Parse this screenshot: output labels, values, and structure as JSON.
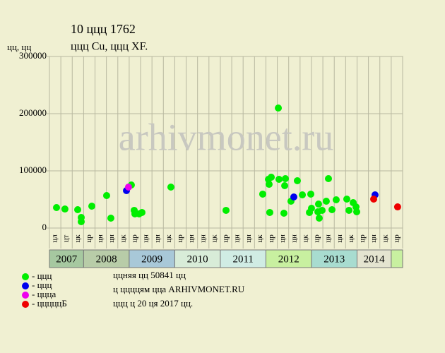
{
  "chart_data": {
    "type": "scatter",
    "title": "10 ццц 1762",
    "subtitle": "ццц Cu, ццц XF.",
    "y_label": "цц, цц",
    "watermark": "arhivmonet.ru",
    "xlim": [
      0,
      31
    ],
    "ylim": [
      0,
      300000
    ],
    "yticks": [
      0,
      100000,
      200000,
      300000
    ],
    "grid": true,
    "columns": [
      "цл",
      "цт",
      "цк",
      "цр",
      "цн",
      "цн",
      "цк",
      "цр",
      "цн",
      "цн",
      "цк",
      "цр",
      "цн",
      "цн",
      "цк",
      "цр",
      "цн",
      "цн",
      "цк",
      "цр",
      "цн",
      "цн",
      "цк",
      "цр",
      "цн",
      "цн",
      "цк",
      "цр",
      "цн",
      "цк",
      "цр"
    ],
    "years": [
      {
        "label": "2007",
        "from": 0,
        "to": 3,
        "color": "#a6c8a0"
      },
      {
        "label": "2008",
        "from": 3,
        "to": 7,
        "color": "#b8cca8"
      },
      {
        "label": "2009",
        "from": 7,
        "to": 11,
        "color": "#a8c8d8"
      },
      {
        "label": "2010",
        "from": 11,
        "to": 15,
        "color": "#d8ecd8"
      },
      {
        "label": "2011",
        "from": 15,
        "to": 19,
        "color": "#d0ece4"
      },
      {
        "label": "2012",
        "from": 19,
        "to": 23,
        "color": "#c8f0a0"
      },
      {
        "label": "2013",
        "from": 23,
        "to": 27,
        "color": "#a8dcd0"
      },
      {
        "label": "2014",
        "from": 27,
        "to": 30,
        "color": "#e4e4d0"
      },
      {
        "label": "",
        "from": 30,
        "to": 31,
        "color": "#c8f0a0"
      }
    ],
    "series": [
      {
        "name": "- ццц",
        "color": "#00ee00",
        "x": [
          0.62,
          1.36,
          2.48,
          2.79,
          2.79,
          3.72,
          5.02,
          5.39,
          7.19,
          7.44,
          7.5,
          7.87,
          8.12,
          10.66,
          15.5,
          18.72,
          19.22,
          19.28,
          19.34,
          19.47,
          20.09,
          20.15,
          20.58,
          20.65,
          20.71,
          21.2,
          21.76,
          22.2,
          22.82,
          22.94,
          23.0,
          23.56,
          23.62,
          23.68,
          23.93,
          24.3,
          24.49,
          24.8,
          25.17,
          26.1,
          26.29,
          26.66,
          26.91,
          26.97
        ],
        "values": [
          35800,
          33300,
          32100,
          18500,
          11100,
          38300,
          56800,
          17300,
          75300,
          30900,
          24700,
          24700,
          27200,
          71600,
          30900,
          59300,
          85200,
          76500,
          27200,
          88900,
          209900,
          85200,
          25900,
          74100,
          86400,
          46900,
          82700,
          58000,
          27200,
          59300,
          34600,
          28400,
          42000,
          17300,
          30900,
          46900,
          86400,
          32100,
          49400,
          50600,
          30900,
          44400,
          37000,
          28400
        ]
      },
      {
        "name": "- ццц",
        "color": "#0000ee",
        "x": [
          6.76,
          21.45,
          28.58
        ],
        "values": [
          65400,
          54300,
          58000
        ]
      },
      {
        "name": "- ццца",
        "color": "#ee00ee",
        "x": [
          6.94
        ],
        "values": [
          71600
        ]
      },
      {
        "name": "- цццццБ",
        "color": "#ee0000",
        "x": [
          28.46,
          30.56
        ],
        "values": [
          50600,
          37000
        ]
      }
    ],
    "notes": [
      "ццняя цц 50841 цц",
      "ц ццццям цца ARHIVMONET.RU",
      "ццц ц 20 ця 2017 цц."
    ]
  }
}
